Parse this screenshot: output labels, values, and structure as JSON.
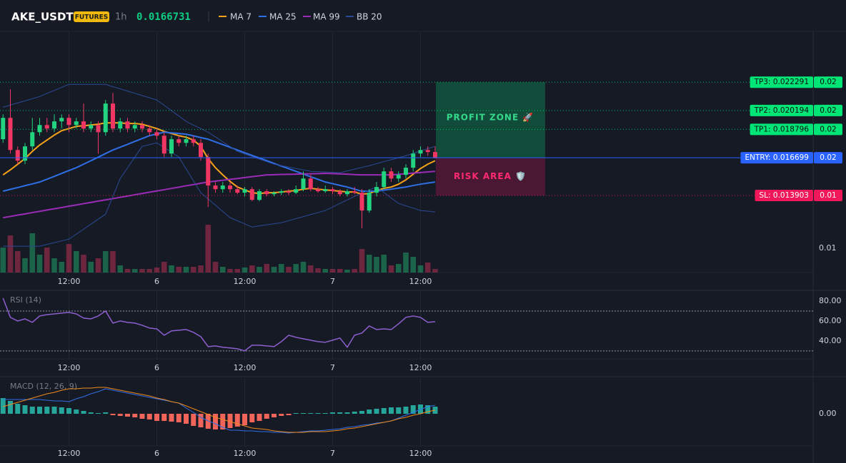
{
  "chart_data": [
    {
      "type": "candlestick",
      "title": "AKE_USDT",
      "badge": "FUTURES",
      "interval": "1h",
      "last_price": 0.0166731,
      "categories": [
        null,
        null,
        null,
        null,
        null,
        null,
        null,
        null,
        null,
        "12:00",
        null,
        null,
        null,
        null,
        null,
        null,
        null,
        null,
        null,
        null,
        null,
        "6",
        null,
        null,
        null,
        null,
        null,
        null,
        null,
        null,
        null,
        null,
        null,
        "12:00",
        null,
        null,
        null,
        null,
        null,
        null,
        null,
        null,
        null,
        null,
        null,
        "7",
        null,
        null,
        null,
        null,
        null,
        null,
        null,
        null,
        null,
        null,
        null,
        "12:00",
        null,
        null
      ],
      "open": [
        0.01807,
        0.01965,
        0.01727,
        0.01648,
        0.01754,
        0.01859,
        0.01912,
        0.01886,
        0.01939,
        0.01965,
        0.01912,
        0.01939,
        0.01886,
        0.01912,
        0.01859,
        0.02071,
        0.01886,
        0.01939,
        0.01886,
        0.01912,
        0.01886,
        0.01859,
        0.01833,
        0.01701,
        0.01807,
        0.0178,
        0.01807,
        0.0178,
        0.01675,
        0.01464,
        0.01437,
        0.01464,
        0.01437,
        0.01411,
        0.01437,
        0.01358,
        0.01422,
        0.014,
        0.01411,
        0.01422,
        0.01411,
        0.01437,
        0.01516,
        0.01437,
        0.01422,
        0.01437,
        0.01422,
        0.014,
        0.01422,
        0.01411,
        0.01279,
        0.01411,
        0.01453,
        0.01569,
        0.01516,
        0.01543,
        0.01596,
        0.01701,
        0.01727,
        0.01712
      ],
      "high": [
        0.01991,
        0.02176,
        0.01754,
        0.0178,
        0.01965,
        0.01965,
        0.01965,
        0.01991,
        0.01991,
        0.01991,
        0.01965,
        0.02071,
        0.01939,
        0.01939,
        0.02097,
        0.0215,
        0.01965,
        0.01965,
        0.01939,
        0.01939,
        0.01912,
        0.01886,
        0.01859,
        0.01833,
        0.01833,
        0.01833,
        0.01833,
        0.01807,
        0.01701,
        0.0149,
        0.0149,
        0.0149,
        0.01464,
        0.01453,
        0.01453,
        0.01437,
        0.01437,
        0.01422,
        0.01437,
        0.01437,
        0.01464,
        0.01569,
        0.01543,
        0.01453,
        0.01464,
        0.01453,
        0.01437,
        0.01437,
        0.01453,
        0.01437,
        0.01437,
        0.0149,
        0.01596,
        0.01596,
        0.01569,
        0.01622,
        0.01727,
        0.01754,
        0.01754,
        0.01754
      ],
      "low": [
        0.0178,
        0.01701,
        0.01622,
        0.01622,
        0.01727,
        0.01833,
        0.01859,
        0.01859,
        0.01886,
        0.01859,
        0.01886,
        0.01859,
        0.01859,
        0.01701,
        0.01833,
        0.01859,
        0.01859,
        0.01859,
        0.01859,
        0.01859,
        0.01833,
        0.01807,
        0.01675,
        0.01675,
        0.01754,
        0.01754,
        0.01754,
        0.01648,
        0.01305,
        0.01411,
        0.01411,
        0.01411,
        0.014,
        0.01384,
        0.01348,
        0.01348,
        0.01384,
        0.01384,
        0.01395,
        0.01395,
        0.014,
        0.01422,
        0.01422,
        0.01411,
        0.01411,
        0.014,
        0.01384,
        0.01384,
        0.014,
        0.01147,
        0.01263,
        0.01384,
        0.01437,
        0.0149,
        0.0149,
        0.01516,
        0.01569,
        0.01675,
        0.01685,
        0.01664
      ],
      "close": [
        0.01965,
        0.01727,
        0.01648,
        0.01754,
        0.01859,
        0.01912,
        0.01886,
        0.01939,
        0.01965,
        0.01912,
        0.01939,
        0.01886,
        0.01912,
        0.01859,
        0.02071,
        0.01886,
        0.01939,
        0.01886,
        0.01912,
        0.01886,
        0.01859,
        0.01833,
        0.01701,
        0.01807,
        0.0178,
        0.01807,
        0.0178,
        0.01675,
        0.01464,
        0.01437,
        0.01464,
        0.01437,
        0.01411,
        0.01437,
        0.01358,
        0.01422,
        0.014,
        0.01411,
        0.01422,
        0.01411,
        0.01437,
        0.01516,
        0.01437,
        0.01422,
        0.01437,
        0.01422,
        0.014,
        0.01422,
        0.01411,
        0.01279,
        0.01411,
        0.01453,
        0.01569,
        0.01516,
        0.01543,
        0.01596,
        0.01701,
        0.01727,
        0.01712,
        0.01667
      ],
      "up_color": "#22d37f",
      "down_color": "#f23663",
      "series": [
        {
          "name": "MA 7",
          "color": "#f7a21b",
          "values": [
            0.01543,
            0.0158,
            0.01622,
            0.01664,
            0.01717,
            0.01764,
            0.01801,
            0.01838,
            0.0187,
            0.01886,
            0.01902,
            0.01907,
            0.01912,
            0.01918,
            0.01928,
            0.01928,
            0.01928,
            0.01923,
            0.01923,
            0.01918,
            0.01902,
            0.01886,
            0.01865,
            0.01849,
            0.01833,
            0.01822,
            0.01801,
            0.01754,
            0.01664,
            0.01596,
            0.01543,
            0.01495,
            0.01453,
            0.01432,
            0.01411,
            0.01405,
            0.01411,
            0.01411,
            0.01416,
            0.01422,
            0.01427,
            0.01437,
            0.01443,
            0.01437,
            0.01432,
            0.01427,
            0.01422,
            0.01416,
            0.01416,
            0.014,
            0.01405,
            0.01427,
            0.01443,
            0.01453,
            0.01474,
            0.01506,
            0.01548,
            0.0159,
            0.01622,
            0.01648
          ]
        },
        {
          "name": "MA 25",
          "color": "#2f6fe6",
          "values": [
            0.01422,
            0.01436,
            0.01449,
            0.01463,
            0.01476,
            0.0149,
            0.01511,
            0.01532,
            0.01554,
            0.01575,
            0.01596,
            0.01622,
            0.01648,
            0.01674,
            0.01701,
            0.01727,
            0.01748,
            0.01769,
            0.01791,
            0.01812,
            0.01833,
            0.01846,
            0.01859,
            0.01854,
            0.01849,
            0.01844,
            0.01832,
            0.01819,
            0.01807,
            0.01787,
            0.01767,
            0.01747,
            0.01727,
            0.01707,
            0.01687,
            0.01668,
            0.01648,
            0.01628,
            0.01608,
            0.01589,
            0.01569,
            0.01549,
            0.01529,
            0.0151,
            0.0149,
            0.01478,
            0.01465,
            0.01453,
            0.01437,
            0.01422,
            0.01422,
            0.01422,
            0.0143,
            0.01437,
            0.01445,
            0.01453,
            0.01464,
            0.01474,
            0.01482,
            0.0149
          ]
        },
        {
          "name": "MA 99",
          "color": "#9c2cb8",
          "values": [
            0.01226,
            0.01235,
            0.01245,
            0.01254,
            0.01264,
            0.01273,
            0.01283,
            0.01292,
            0.01301,
            0.01311,
            0.0132,
            0.0133,
            0.01339,
            0.01349,
            0.01358,
            0.01367,
            0.01377,
            0.01386,
            0.01396,
            0.01405,
            0.01415,
            0.01424,
            0.01433,
            0.01443,
            0.01452,
            0.01462,
            0.01471,
            0.01481,
            0.0149,
            0.01497,
            0.01503,
            0.0151,
            0.01516,
            0.01523,
            0.0153,
            0.01536,
            0.01543,
            0.01544,
            0.01546,
            0.01547,
            0.01548,
            0.0155,
            0.01551,
            0.01552,
            0.01554,
            0.01552,
            0.0155,
            0.01548,
            0.01545,
            0.01543,
            0.01543,
            0.01543,
            0.01543,
            0.01543,
            0.01547,
            0.01552,
            0.01556,
            0.0156,
            0.01565,
            0.01569
          ]
        },
        {
          "name": "BB 20",
          "color": "#2b4a96",
          "values": [
            0.02044,
            0.0206,
            0.02076,
            0.02091,
            0.02107,
            0.02123,
            0.02146,
            0.02168,
            0.02191,
            0.02213,
            0.02213,
            0.02213,
            0.02213,
            0.02213,
            0.02213,
            0.02196,
            0.0218,
            0.02163,
            0.02147,
            0.0213,
            0.02114,
            0.02097,
            0.02058,
            0.02018,
            0.01979,
            0.01939,
            0.01912,
            0.01886,
            0.01859,
            0.01824,
            0.01788,
            0.01753,
            0.01717,
            0.01698,
            0.01679,
            0.0166,
            0.01641,
            0.01622,
            0.01611,
            0.01601,
            0.0159,
            0.0158,
            0.01569,
            0.01567,
            0.01564,
            0.01562,
            0.01559,
            0.01572,
            0.01585,
            0.01598,
            0.01611,
            0.01626,
            0.01641,
            0.01655,
            0.0167,
            0.01685,
            0.01702,
            0.0172,
            0.01737,
            0.01754
          ],
          "lower": [
            0.01015,
            0.01015,
            0.01015,
            0.01015,
            0.01015,
            0.01015,
            0.01028,
            0.01041,
            0.01054,
            0.01067,
            0.01104,
            0.01141,
            0.01178,
            0.01215,
            0.01252,
            0.01384,
            0.01516,
            0.01595,
            0.01675,
            0.01754,
            0.01767,
            0.0178,
            0.01745,
            0.0171,
            0.01675,
            0.01587,
            0.01499,
            0.01411,
            0.01365,
            0.01319,
            0.01272,
            0.01226,
            0.01203,
            0.0118,
            0.01157,
            0.01165,
            0.01173,
            0.01181,
            0.01189,
            0.01204,
            0.01219,
            0.01234,
            0.01249,
            0.01264,
            0.01279,
            0.01305,
            0.01332,
            0.01358,
            0.01384,
            0.01407,
            0.0143,
            0.01453,
            0.01413,
            0.01372,
            0.01332,
            0.01314,
            0.01297,
            0.01279,
            0.01274,
            0.01268
          ]
        }
      ],
      "volume": [
        35,
        52,
        30,
        20,
        55,
        25,
        35,
        20,
        15,
        40,
        30,
        25,
        15,
        20,
        30,
        30,
        10,
        5,
        5,
        5,
        5,
        7,
        15,
        10,
        8,
        8,
        8,
        10,
        67,
        15,
        8,
        5,
        5,
        7,
        10,
        8,
        12,
        8,
        12,
        8,
        12,
        15,
        10,
        6,
        5,
        5,
        5,
        4,
        5,
        33,
        25,
        22,
        25,
        10,
        12,
        28,
        22,
        10,
        14,
        5
      ],
      "y2lim": [
        0,
        100
      ],
      "ylim": [
        0.0082,
        0.026
      ],
      "yticks": [
        0.01
      ],
      "grid": true,
      "levels": [
        {
          "label": "TP3: 0.022291",
          "value": 0.022291,
          "axis_label": "0.02",
          "color": "#00e676",
          "text_color": "#0b0e11",
          "dashed": true
        },
        {
          "label": "TP2: 0.020194",
          "value": 0.020194,
          "axis_label": "0.02",
          "color": "#00e676",
          "text_color": "#0b0e11",
          "dashed": true
        },
        {
          "label": "TP1: 0.018796",
          "value": 0.018796,
          "axis_label": "0.02",
          "color": "#00e676",
          "text_color": "#0b0e11",
          "dashed": true
        },
        {
          "label": "ENTRY: 0.016699",
          "value": 0.016699,
          "axis_label": "0.02",
          "color": "#2962ff",
          "text_color": "#ffffff",
          "dashed": false
        },
        {
          "label": "SL: 0.013903",
          "value": 0.013903,
          "axis_label": "0.01",
          "color": "#f0185a",
          "text_color": "#ffffff",
          "dashed": true
        }
      ],
      "zones": [
        {
          "label": "PROFIT ZONE 🚀",
          "color": "#0c8a55",
          "text_color": "#35d98a"
        },
        {
          "label": "RISK AREA 🛡️",
          "color": "#8a1742",
          "text_color": "#ff2a70"
        }
      ]
    },
    {
      "type": "line",
      "title": "RSI (14)",
      "color": "#8e5fd0",
      "values": [
        82.9,
        63.6,
        60.0,
        62.1,
        58.6,
        65.0,
        66.4,
        67.1,
        67.9,
        68.6,
        67.1,
        62.9,
        62.1,
        65.0,
        70.0,
        57.9,
        60.0,
        58.6,
        57.9,
        55.7,
        52.9,
        52.1,
        45.7,
        50.0,
        50.7,
        51.4,
        48.6,
        44.3,
        34.3,
        35.0,
        33.6,
        32.9,
        32.1,
        30.0,
        35.7,
        35.7,
        35.0,
        34.3,
        39.3,
        45.7,
        43.6,
        42.1,
        40.7,
        39.3,
        38.6,
        40.7,
        42.9,
        33.6,
        45.7,
        47.9,
        55.0,
        51.4,
        52.1,
        51.4,
        57.1,
        63.6,
        65.0,
        63.6,
        58.6,
        59.3
      ],
      "ylim": [
        22,
        90
      ],
      "yticks": [
        {
          "value": 80,
          "label": "80.00"
        },
        {
          "value": 60,
          "label": "60.00"
        },
        {
          "value": 40,
          "label": "40.00"
        }
      ],
      "levels": [
        70,
        30
      ]
    },
    {
      "type": "macd",
      "title": "MACD (12, 26, 9)",
      "series": [
        {
          "color": "#2f6fe6",
          "values": [
            0.0002,
            0.0002,
            0.0002,
            0.0002,
            0.0002,
            0.0002,
            0.00019,
            0.00018,
            0.00018,
            0.00017,
            0.00021,
            0.00024,
            0.00028,
            0.00031,
            0.00035,
            0.00033,
            0.00031,
            0.00029,
            0.00027,
            0.00025,
            0.00023,
            0.00021,
            0.00019,
            0.00017,
            0.00015,
            8e-05,
            2e-05,
            -5e-05,
            -0.0001,
            -0.00014,
            -0.00019,
            -0.00023,
            -0.00023,
            -0.00024,
            -0.00024,
            -0.00025,
            -0.00025,
            -0.00026,
            -0.00026,
            -0.00027,
            -0.00026,
            -0.00025,
            -0.00024,
            -0.00024,
            -0.00023,
            -0.00022,
            -0.00021,
            -0.00019,
            -0.00018,
            -0.00016,
            -0.00015,
            -0.00013,
            -0.00012,
            -0.0001,
            -6e-05,
            -2e-05,
            2e-05,
            6e-05,
            0.0001,
            0.00012
          ]
        },
        {
          "color": "#f08a1c",
          "values": [
            0.0001,
            0.00013,
            0.00016,
            0.00019,
            0.00022,
            0.00025,
            0.00028,
            0.0003,
            0.00033,
            0.00035,
            0.00035,
            0.00036,
            0.00036,
            0.00037,
            0.00037,
            0.00035,
            0.00033,
            0.00031,
            0.00029,
            0.00027,
            0.00025,
            0.00022,
            0.0002,
            0.00017,
            0.00015,
            0.00011,
            7e-05,
            3e-05,
            -1e-05,
            -5e-05,
            -8e-05,
            -0.00011,
            -0.00014,
            -0.00017,
            -0.0002,
            -0.00021,
            -0.00022,
            -0.00024,
            -0.00025,
            -0.00026,
            -0.00026,
            -0.00026,
            -0.00025,
            -0.00025,
            -0.00025,
            -0.00024,
            -0.00023,
            -0.00021,
            -0.0002,
            -0.00018,
            -0.00016,
            -0.00014,
            -0.00012,
            -0.0001,
            -7e-05,
            -5e-05,
            -2e-05,
            0,
            3e-05,
            5e-05
          ]
        }
      ],
      "histogram": [
        0.00022,
        0.00018,
        0.00014,
        0.00012,
        0.0001,
        0.0001,
        0.0001,
        0.0001,
        9e-05,
        8e-05,
        6e-05,
        4e-05,
        2e-05,
        1e-05,
        2e-05,
        -2e-05,
        -3e-05,
        -4e-05,
        -5e-05,
        -7e-05,
        -8e-05,
        -0.0001,
        -0.0001,
        -0.00011,
        -0.00012,
        -0.00014,
        -0.00017,
        -0.00019,
        -0.00021,
        -0.00022,
        -0.00022,
        -0.0002,
        -0.00018,
        -0.00016,
        -0.00012,
        -0.0001,
        -7e-05,
        -5e-05,
        -3e-05,
        -2e-05,
        1e-05,
        1e-05,
        1e-05,
        1e-05,
        1e-05,
        2e-05,
        2e-05,
        2e-05,
        3e-05,
        4e-05,
        6e-05,
        7e-05,
        8e-05,
        9e-05,
        9e-05,
        0.0001,
        0.00012,
        0.00013,
        0.00012,
        0.0001
      ],
      "up_color": "#26a69a",
      "down_color": "#f0645a",
      "ylim": [
        -0.00045,
        0.0005
      ],
      "yticks": [
        {
          "value": 0,
          "label": "0.00"
        }
      ]
    }
  ]
}
